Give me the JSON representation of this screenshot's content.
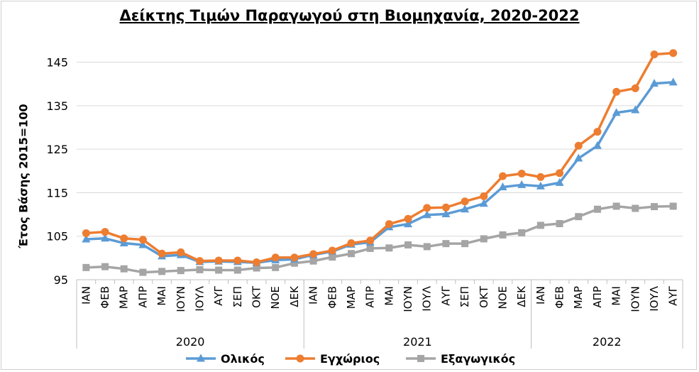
{
  "chart_data": {
    "type": "line",
    "title": "Δείκτης Τιμών Παραγωγού στη Βιομηχανία, 2020-2022",
    "ylabel": "Έτος Βάσης 2015=100",
    "ylim": [
      95,
      150
    ],
    "yticks": [
      95,
      105,
      115,
      125,
      135,
      145
    ],
    "grid": true,
    "legend_position": "bottom",
    "groups": [
      {
        "label": "2020",
        "count": 12
      },
      {
        "label": "2021",
        "count": 12
      },
      {
        "label": "2022",
        "count": 8
      }
    ],
    "categories": [
      "ΙΑΝ",
      "ΦΕΒ",
      "ΜΑΡ",
      "ΑΠΡ",
      "ΜΑΙ",
      "ΙΟΥΝ",
      "ΙΟΥΛ",
      "ΑΥΓ",
      "ΣΕΠ",
      "ΟΚΤ",
      "ΝΟΕ",
      "ΔΕΚ",
      "ΙΑΝ",
      "ΦΕΒ",
      "ΜΑΡ",
      "ΑΠΡ",
      "ΜΑΙ",
      "ΙΟΥΝ",
      "ΙΟΥΛ",
      "ΑΥΓ",
      "ΣΕΠ",
      "ΟΚΤ",
      "ΝΟΕ",
      "ΔΕΚ",
      "ΙΑΝ",
      "ΦΕΒ",
      "ΜΑΡ",
      "ΑΠΡ",
      "ΜΑΙ",
      "ΙΟΥΝ",
      "ΙΟΥΛ",
      "ΑΥΓ"
    ],
    "series": [
      {
        "name": "Ολικός",
        "color": "#5b9bd5",
        "marker": "triangle",
        "values": [
          104.3,
          104.5,
          103.4,
          103.0,
          100.4,
          100.7,
          99.1,
          99.2,
          99.1,
          98.9,
          99.5,
          99.7,
          100.7,
          101.5,
          103.1,
          103.6,
          107.1,
          107.8,
          109.9,
          110.1,
          111.2,
          112.5,
          116.3,
          116.8,
          116.5,
          117.3,
          122.9,
          125.8,
          133.4,
          134.0,
          140.1,
          140.4
        ]
      },
      {
        "name": "Εγχώριος",
        "color": "#ed7d31",
        "marker": "circle",
        "values": [
          105.7,
          106.0,
          104.5,
          104.2,
          101.0,
          101.3,
          99.3,
          99.4,
          99.4,
          99.0,
          100.1,
          100.1,
          100.9,
          101.7,
          103.4,
          104.0,
          107.8,
          109.0,
          111.5,
          111.6,
          113.0,
          114.2,
          118.8,
          119.4,
          118.6,
          119.5,
          125.8,
          129.0,
          138.2,
          139.0,
          146.8,
          147.1
        ]
      },
      {
        "name": "Εξαγωγικός",
        "color": "#a5a5a5",
        "marker": "square",
        "values": [
          97.8,
          98.0,
          97.5,
          96.7,
          96.9,
          97.1,
          97.3,
          97.2,
          97.2,
          97.7,
          97.8,
          98.8,
          99.3,
          100.2,
          101.0,
          102.2,
          102.3,
          103.0,
          102.6,
          103.3,
          103.3,
          104.4,
          105.3,
          105.8,
          107.5,
          107.9,
          109.5,
          111.2,
          111.9,
          111.4,
          111.8,
          111.9
        ]
      }
    ]
  }
}
